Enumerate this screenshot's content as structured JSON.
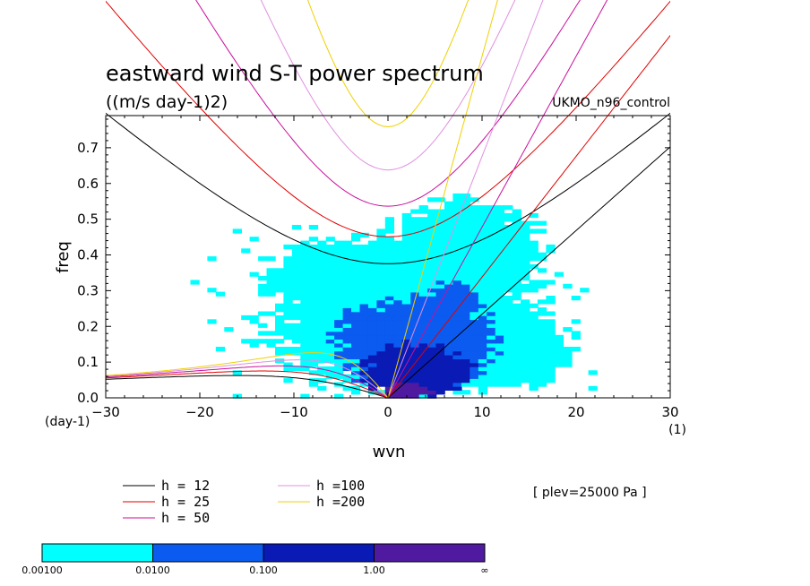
{
  "chart_data": {
    "type": "heatmap",
    "title": "eastward wind S-T power spectrum",
    "units": "((m/s day-1)2)",
    "model_label": "UKMO_n96_control",
    "level_label": "[ plev=25000 Pa ]",
    "xlabel": "wvn",
    "ylabel": "freq",
    "x_unit_label": "(1)",
    "y_unit_label": "(day-1)",
    "xlim": [
      -30,
      30
    ],
    "ylim": [
      0,
      0.79
    ],
    "x_ticks": [
      -30,
      -20,
      -10,
      0,
      10,
      20,
      30
    ],
    "x_tick_labels": [
      "−30",
      "−20",
      "−10",
      "0",
      "10",
      "20",
      "30"
    ],
    "y_ticks": [
      0.0,
      0.1,
      0.2,
      0.3,
      0.4,
      0.5,
      0.6,
      0.7
    ],
    "y_tick_labels": [
      "0.0",
      "0.1",
      "0.2",
      "0.3",
      "0.4",
      "0.5",
      "0.6",
      "0.7"
    ],
    "colorbar": {
      "boundaries": [
        "0.00100",
        "0.0100",
        "0.100",
        "1.00",
        "∞"
      ],
      "colors": [
        "#00ffff",
        "#0b5bf0",
        "#0a1ab4",
        "#501aa0"
      ]
    },
    "dispersion_curves": [
      {
        "label": "h = 12",
        "h": 12,
        "color": "#000000"
      },
      {
        "label": "h = 25",
        "h": 25,
        "color": "#e00000"
      },
      {
        "label": "h = 50",
        "h": 50,
        "color": "#c8109c"
      },
      {
        "label": "h =100",
        "h": 100,
        "color": "#e090e0"
      },
      {
        "label": "h =200",
        "h": 200,
        "color": "#f0d000"
      }
    ],
    "heatmap_regions": [
      {
        "level": 1,
        "cx": 2,
        "cy": 0.21,
        "rx": 17,
        "ry": 0.22
      },
      {
        "level": 1,
        "cx": 8,
        "cy": 0.4,
        "rx": 10,
        "ry": 0.18
      },
      {
        "level": 1,
        "cx": -4,
        "cy": 0.34,
        "rx": 11,
        "ry": 0.12
      },
      {
        "level": 1,
        "cx": 12,
        "cy": 0.14,
        "rx": 9,
        "ry": 0.13
      },
      {
        "level": 2,
        "cx": 3,
        "cy": 0.16,
        "rx": 10,
        "ry": 0.15
      },
      {
        "level": 2,
        "cx": 7,
        "cy": 0.27,
        "rx": 3,
        "ry": 0.07
      },
      {
        "level": 3,
        "cx": 3,
        "cy": 0.08,
        "rx": 6.5,
        "ry": 0.09
      },
      {
        "level": 4,
        "cx": 2,
        "cy": 0.02,
        "rx": 3,
        "ry": 0.025
      }
    ]
  }
}
